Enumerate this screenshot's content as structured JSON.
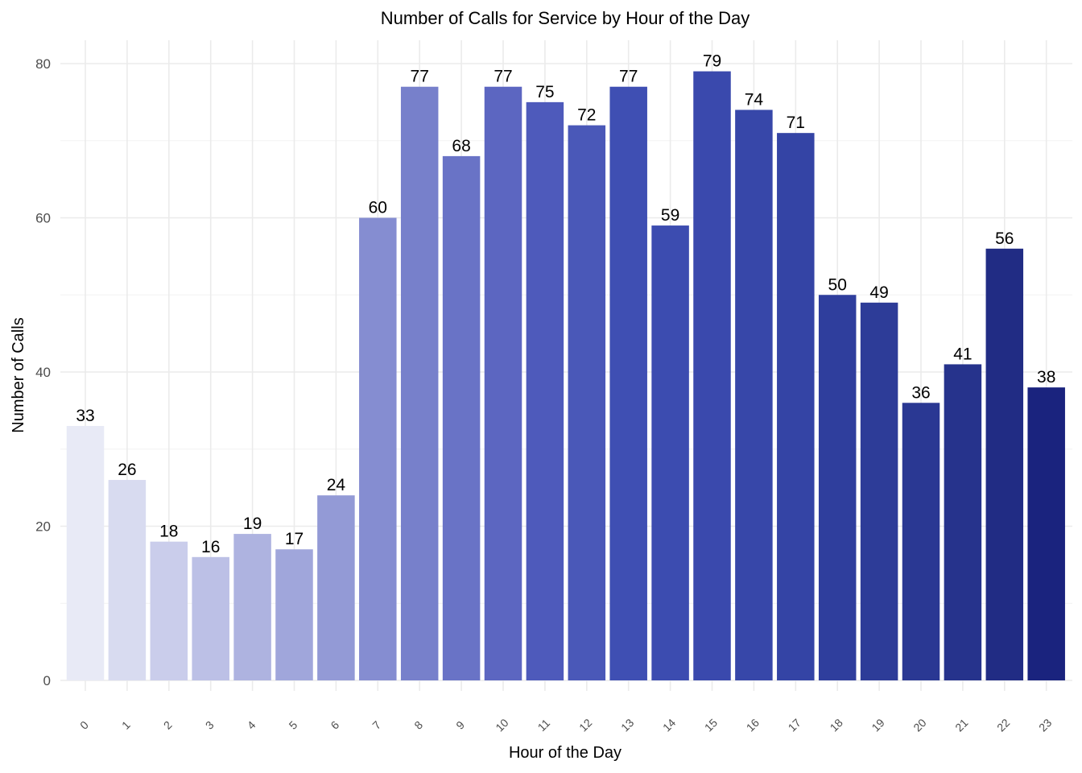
{
  "chart_data": {
    "type": "bar",
    "title": "Number of Calls for Service by Hour of the Day",
    "xlabel": "Hour of the Day",
    "ylabel": "Number of Calls",
    "categories": [
      "0",
      "1",
      "2",
      "3",
      "4",
      "5",
      "6",
      "7",
      "8",
      "9",
      "10",
      "11",
      "12",
      "13",
      "14",
      "15",
      "16",
      "17",
      "18",
      "19",
      "20",
      "21",
      "22",
      "23"
    ],
    "values": [
      33,
      26,
      18,
      16,
      19,
      17,
      24,
      60,
      77,
      68,
      77,
      75,
      72,
      77,
      59,
      79,
      74,
      71,
      50,
      49,
      36,
      41,
      56,
      38
    ],
    "ylim": [
      0,
      80
    ],
    "yticks": [
      0,
      20,
      40,
      60,
      80
    ],
    "grid": true,
    "legend": "none",
    "colors": [
      "#e8eaf6",
      "#d8dbf0",
      "#cacdeb",
      "#bcc0e6",
      "#aeb3e0",
      "#a0a6db",
      "#939ad6",
      "#858dd1",
      "#7780cb",
      "#6973c6",
      "#5c66c1",
      "#4e5abb",
      "#4a58b8",
      "#3f4fb3",
      "#3c4cb0",
      "#3a49ad",
      "#3747a9",
      "#3444a5",
      "#2f3e9d",
      "#2d3c98",
      "#2a3893",
      "#26338c",
      "#212c84",
      "#1a237e"
    ]
  }
}
